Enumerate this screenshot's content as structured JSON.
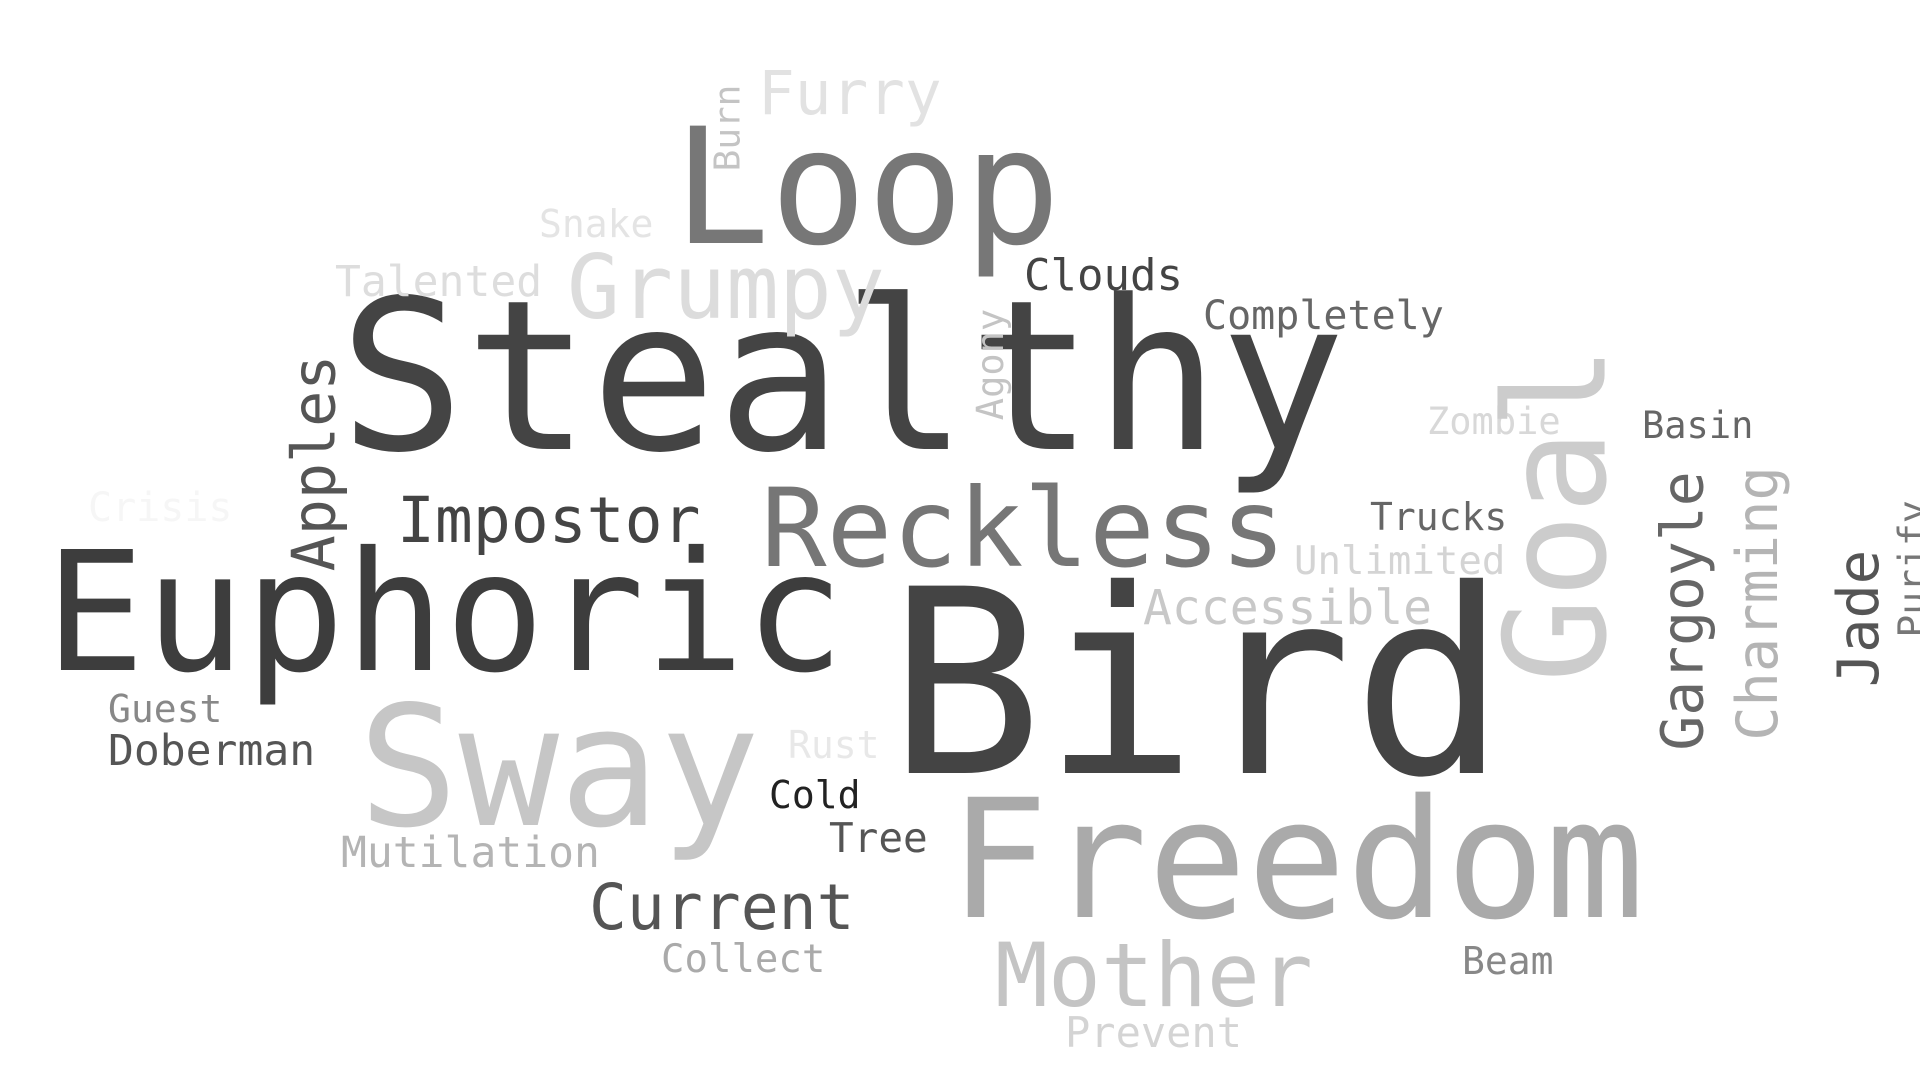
{
  "words": [
    {
      "text": "Stealthy",
      "color": "#444444"
    },
    {
      "text": "Bird",
      "color": "#444444"
    },
    {
      "text": "Euphoric",
      "color": "#3d3d3d"
    },
    {
      "text": "Freedom",
      "color": "#aaaaaa"
    },
    {
      "text": "Loop",
      "color": "#777777"
    },
    {
      "text": "Sway",
      "color": "#c6c6c6"
    },
    {
      "text": "Reckless",
      "color": "#767676"
    },
    {
      "text": "Goal",
      "color": "#cccccc"
    },
    {
      "text": "Grumpy",
      "color": "#dcdcdc"
    },
    {
      "text": "Mother",
      "color": "#c4c4c4"
    },
    {
      "text": "Furry",
      "color": "#e2e2e2"
    },
    {
      "text": "Impostor",
      "color": "#444444"
    },
    {
      "text": "Current",
      "color": "#555555"
    },
    {
      "text": "Apples",
      "color": "#555555"
    },
    {
      "text": "Gargoyle",
      "color": "#666666"
    },
    {
      "text": "Charming",
      "color": "#b4b4b4"
    },
    {
      "text": "Jade",
      "color": "#555555"
    },
    {
      "text": "Accessible",
      "color": "#c8c8c8"
    },
    {
      "text": "Clouds",
      "color": "#444444"
    },
    {
      "text": "Completely",
      "color": "#666666"
    },
    {
      "text": "Talented",
      "color": "#dddddd"
    },
    {
      "text": "Doberman",
      "color": "#555555"
    },
    {
      "text": "Mutilation",
      "color": "#b4b4b4"
    },
    {
      "text": "Trucks",
      "color": "#666666"
    },
    {
      "text": "Unlimited",
      "color": "#d4d4d4"
    },
    {
      "text": "Zombie",
      "color": "#d8d8d8"
    },
    {
      "text": "Basin",
      "color": "#666666"
    },
    {
      "text": "Purify",
      "color": "#777777"
    },
    {
      "text": "Tree",
      "color": "#555555"
    },
    {
      "text": "Collect",
      "color": "#aaaaaa"
    },
    {
      "text": "Beam",
      "color": "#888888"
    },
    {
      "text": "Prevent",
      "color": "#d4d4d4"
    },
    {
      "text": "Guest",
      "color": "#888888"
    },
    {
      "text": "Cold",
      "color": "#222222"
    },
    {
      "text": "Rust",
      "color": "#e8e8e8"
    },
    {
      "text": "Snake",
      "color": "#e4e4e4"
    },
    {
      "text": "Agony",
      "color": "#c4c4c4"
    },
    {
      "text": "Burn",
      "color": "#c4c4c4"
    },
    {
      "text": "Crisis",
      "color": "#f6f6f6"
    }
  ]
}
